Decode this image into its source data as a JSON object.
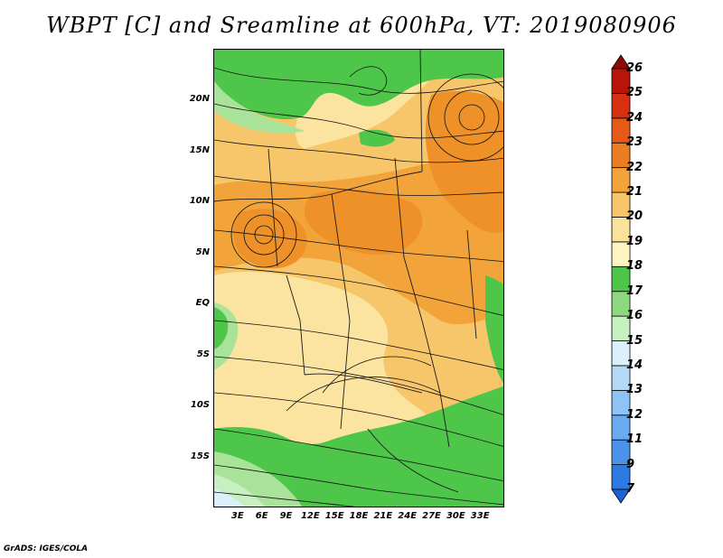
{
  "title": "WBPT [C] and Sreamline at 600hPa, VT: 2019080906",
  "credit": "GrADS: IGES/COLA",
  "map": {
    "lat_range": [
      -20,
      25
    ],
    "lon_range": [
      0,
      36
    ],
    "lat_labels": [
      {
        "lat": 20,
        "text": "20N"
      },
      {
        "lat": 15,
        "text": "15N"
      },
      {
        "lat": 10,
        "text": "10N"
      },
      {
        "lat": 5,
        "text": "5N"
      },
      {
        "lat": 0,
        "text": "EQ"
      },
      {
        "lat": -5,
        "text": "5S"
      },
      {
        "lat": -10,
        "text": "10S"
      },
      {
        "lat": -15,
        "text": "15S"
      }
    ],
    "lon_labels": [
      {
        "lon": 3,
        "text": "3E"
      },
      {
        "lon": 6,
        "text": "6E"
      },
      {
        "lon": 9,
        "text": "9E"
      },
      {
        "lon": 12,
        "text": "12E"
      },
      {
        "lon": 15,
        "text": "15E"
      },
      {
        "lon": 18,
        "text": "18E"
      },
      {
        "lon": 21,
        "text": "21E"
      },
      {
        "lon": 24,
        "text": "24E"
      },
      {
        "lon": 27,
        "text": "27E"
      },
      {
        "lon": 30,
        "text": "30E"
      },
      {
        "lon": 33,
        "text": "33E"
      }
    ],
    "regions": [
      {
        "name": "north-green-band",
        "level": 17,
        "color": "#4dc64a"
      },
      {
        "name": "sahel-orange",
        "level": 21,
        "color": "#f2a43a"
      },
      {
        "name": "central-light-orange",
        "level": 20,
        "color": "#f7c66b"
      },
      {
        "name": "southern-yellow",
        "level": 19,
        "color": "#fbe4a0"
      },
      {
        "name": "south-green",
        "level": 17,
        "color": "#4dc64a"
      },
      {
        "name": "coast-light-green",
        "level": 16,
        "color": "#a9e39a"
      }
    ]
  },
  "colorbar": {
    "levels": [
      "7",
      "9",
      "11",
      "12",
      "13",
      "14",
      "15",
      "16",
      "17",
      "18",
      "19",
      "20",
      "21",
      "22",
      "23",
      "24",
      "25",
      "26"
    ],
    "colors": [
      "#1e63d6",
      "#2e7ae3",
      "#4b93ea",
      "#6aaaf0",
      "#8fc3f5",
      "#b5daf8",
      "#dcf0fb",
      "#c6f0c0",
      "#8ed97f",
      "#4dc64a",
      "#fff3c2",
      "#fbe29a",
      "#f7c66b",
      "#f2a43a",
      "#eb7e22",
      "#e65a17",
      "#d63010",
      "#b81408",
      "#8e0b04"
    ]
  }
}
